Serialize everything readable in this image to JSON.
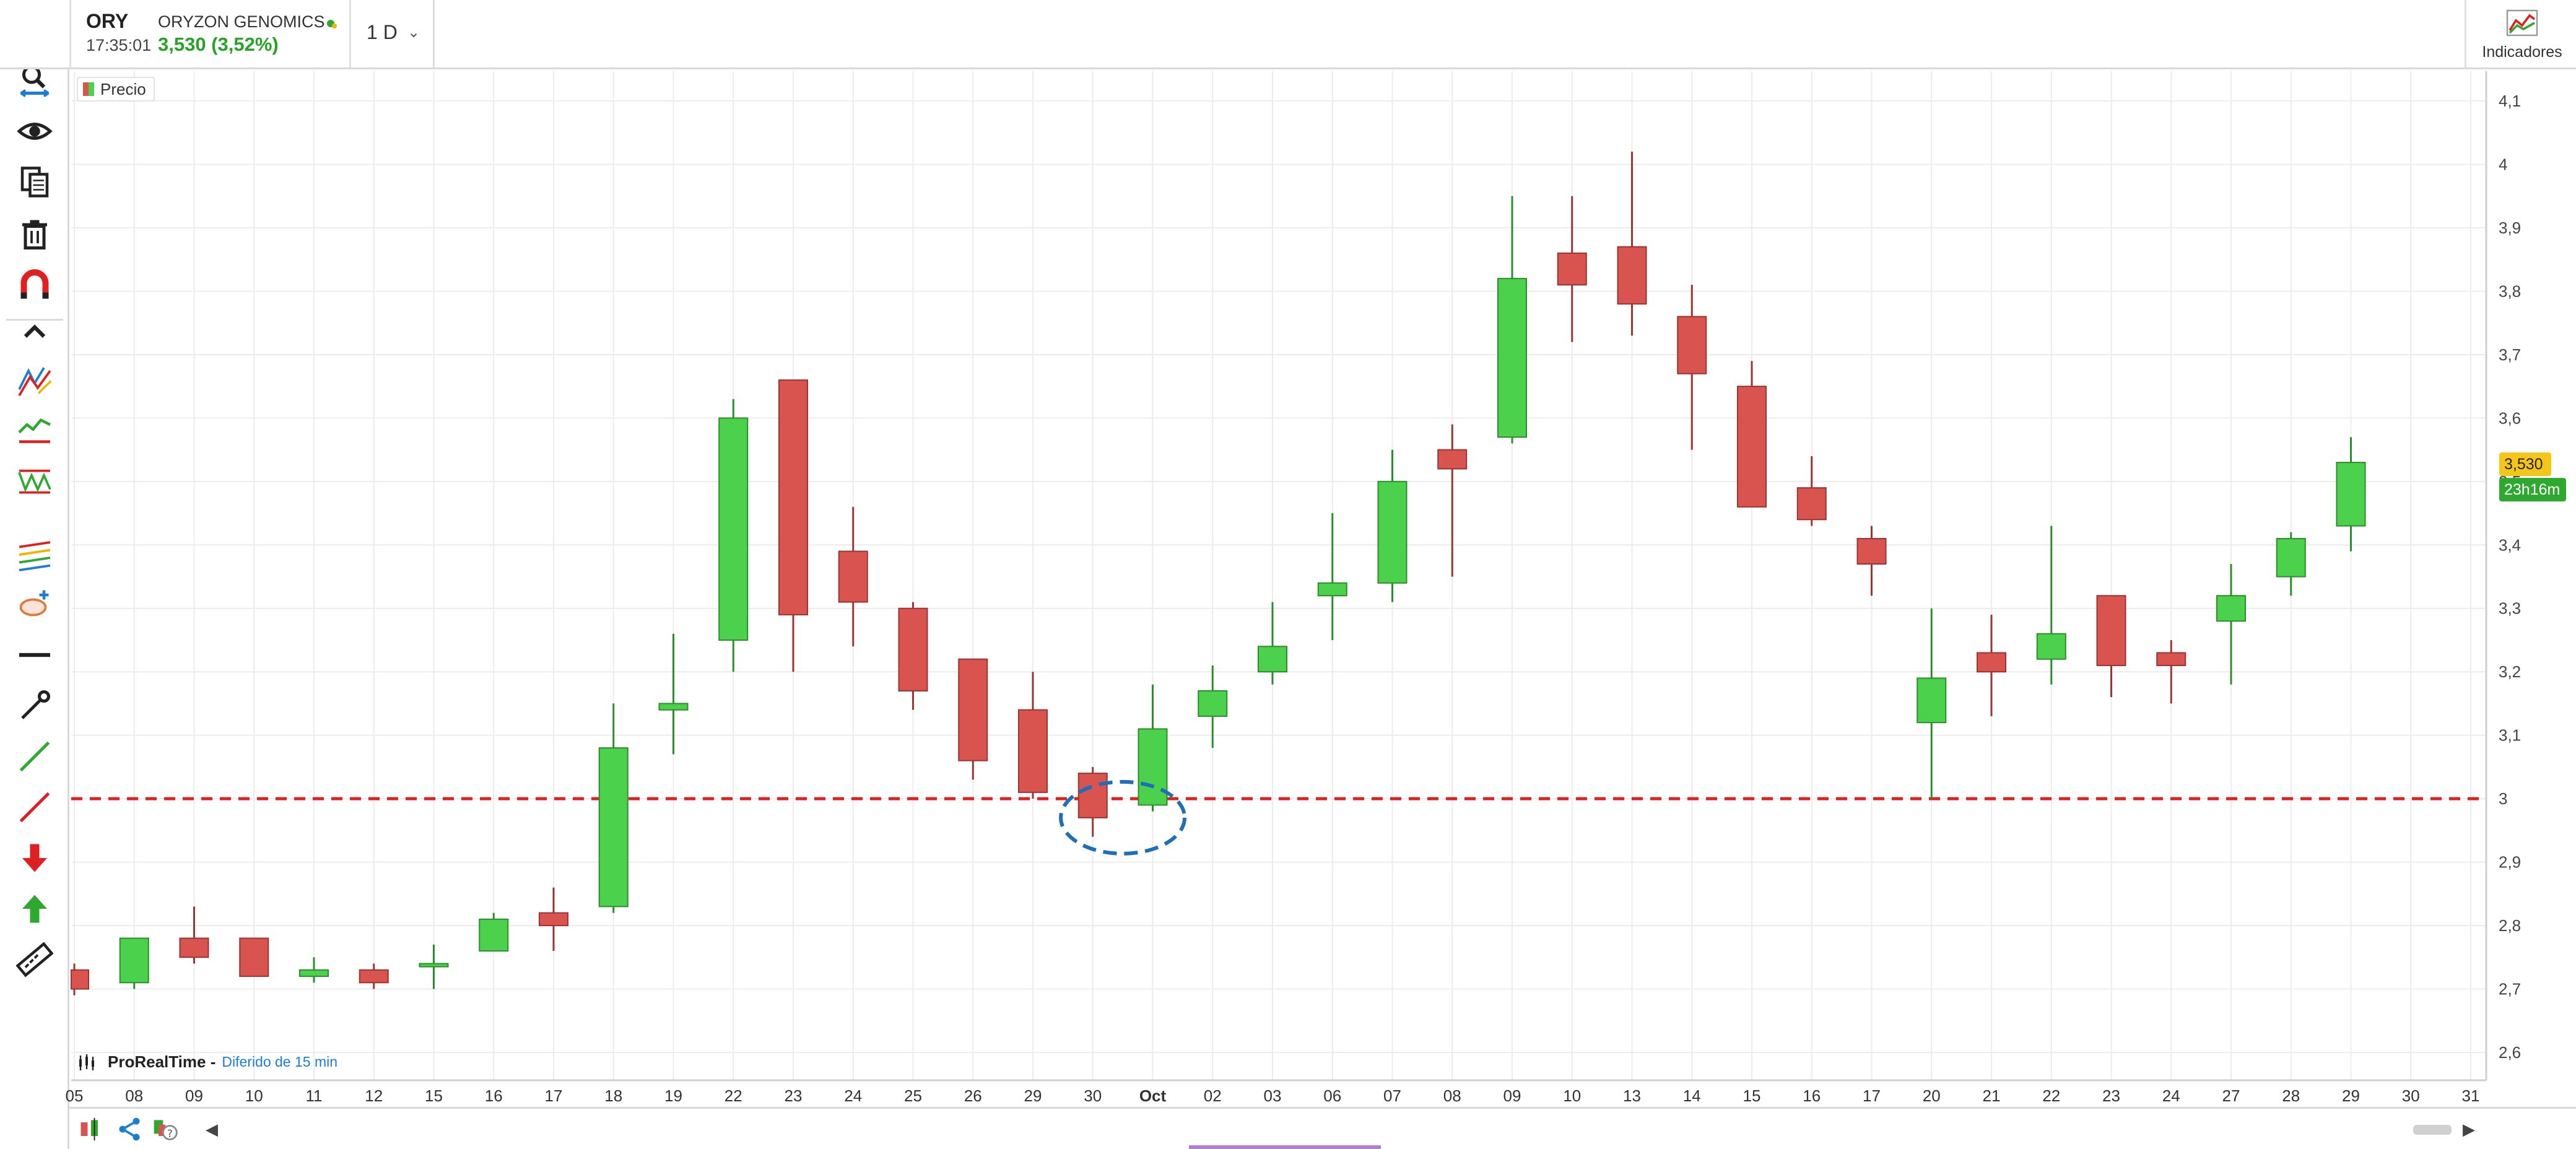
{
  "symbol": {
    "ticker": "ORY",
    "name": "ORYZON GENOMICS",
    "time": "17:35:01",
    "price_change": "3,530 (3,52%)"
  },
  "timeframe": {
    "label": "1 D"
  },
  "indicators": {
    "label": "Indicadores"
  },
  "legend": {
    "label": "Precio"
  },
  "brand": {
    "name": "ProRealTime -",
    "delay": "Diferido de 15 min"
  },
  "price_tags": {
    "last": "3,530",
    "countdown": "23h16m"
  },
  "colors": {
    "up": "#4cd14c",
    "down": "#d9534f",
    "support_line": "#e02020",
    "annotation": "#1f6fb8"
  },
  "toolbar_icons": [
    "pointer-icon",
    "zoom-icon",
    "eye-icon",
    "copy-icon",
    "trash-icon",
    "magnet-icon",
    "collapse-icon",
    "pencil-lines-icon",
    "trendlines-icon",
    "patterns-icon",
    "fibonacci-icon",
    "ellipse-icon",
    "horizontal-line-icon",
    "ray-icon",
    "green-line-icon",
    "red-line-icon",
    "sell-arrow-icon",
    "buy-arrow-icon",
    "ruler-icon"
  ],
  "chart_data": {
    "type": "candlestick",
    "y_ticks": [
      "4,1",
      "4",
      "3,9",
      "3,8",
      "3,7",
      "3,6",
      "3,5",
      "3,4",
      "3,3",
      "3,2",
      "3,1",
      "3",
      "2,9",
      "2,8",
      "2,7",
      "2,6"
    ],
    "ylim": [
      2.55,
      4.15
    ],
    "x_labels": [
      "05",
      "08",
      "09",
      "10",
      "11",
      "12",
      "15",
      "16",
      "17",
      "18",
      "19",
      "22",
      "23",
      "24",
      "25",
      "26",
      "29",
      "30",
      "Oct",
      "02",
      "03",
      "06",
      "07",
      "08",
      "09",
      "10",
      "13",
      "14",
      "15",
      "16",
      "17",
      "20",
      "21",
      "22",
      "23",
      "24",
      "27",
      "28",
      "29",
      "30",
      "31"
    ],
    "support_level": 3.0,
    "grid": true,
    "candles": [
      {
        "x": "05",
        "o": 2.73,
        "h": 2.74,
        "l": 2.69,
        "c": 2.7
      },
      {
        "x": "08",
        "o": 2.71,
        "h": 2.78,
        "l": 2.7,
        "c": 2.78
      },
      {
        "x": "09",
        "o": 2.78,
        "h": 2.83,
        "l": 2.74,
        "c": 2.75
      },
      {
        "x": "10",
        "o": 2.78,
        "h": 2.78,
        "l": 2.72,
        "c": 2.72
      },
      {
        "x": "11",
        "o": 2.72,
        "h": 2.75,
        "l": 2.71,
        "c": 2.73
      },
      {
        "x": "12",
        "o": 2.73,
        "h": 2.74,
        "l": 2.7,
        "c": 2.71
      },
      {
        "x": "15",
        "o": 2.74,
        "h": 2.77,
        "l": 2.7,
        "c": 2.74
      },
      {
        "x": "16",
        "o": 2.76,
        "h": 2.82,
        "l": 2.76,
        "c": 2.81
      },
      {
        "x": "17",
        "o": 2.82,
        "h": 2.86,
        "l": 2.76,
        "c": 2.8
      },
      {
        "x": "18",
        "o": 2.83,
        "h": 3.15,
        "l": 2.82,
        "c": 3.08
      },
      {
        "x": "19",
        "o": 3.14,
        "h": 3.26,
        "l": 3.07,
        "c": 3.15
      },
      {
        "x": "22",
        "o": 3.25,
        "h": 3.63,
        "l": 3.2,
        "c": 3.6
      },
      {
        "x": "23",
        "o": 3.66,
        "h": 3.66,
        "l": 3.2,
        "c": 3.29
      },
      {
        "x": "24",
        "o": 3.39,
        "h": 3.46,
        "l": 3.24,
        "c": 3.31
      },
      {
        "x": "25",
        "o": 3.3,
        "h": 3.31,
        "l": 3.14,
        "c": 3.17
      },
      {
        "x": "26",
        "o": 3.22,
        "h": 3.22,
        "l": 3.03,
        "c": 3.06
      },
      {
        "x": "29",
        "o": 3.14,
        "h": 3.2,
        "l": 3.0,
        "c": 3.01
      },
      {
        "x": "30",
        "o": 3.04,
        "h": 3.05,
        "l": 2.94,
        "c": 2.97
      },
      {
        "x": "Oct",
        "o": 2.99,
        "h": 3.18,
        "l": 2.98,
        "c": 3.11
      },
      {
        "x": "02",
        "o": 3.13,
        "h": 3.21,
        "l": 3.08,
        "c": 3.17
      },
      {
        "x": "03",
        "o": 3.2,
        "h": 3.31,
        "l": 3.18,
        "c": 3.24
      },
      {
        "x": "06",
        "o": 3.32,
        "h": 3.45,
        "l": 3.25,
        "c": 3.34
      },
      {
        "x": "07",
        "o": 3.34,
        "h": 3.55,
        "l": 3.31,
        "c": 3.5
      },
      {
        "x": "08",
        "o": 3.55,
        "h": 3.59,
        "l": 3.35,
        "c": 3.52
      },
      {
        "x": "09",
        "o": 3.57,
        "h": 3.95,
        "l": 3.56,
        "c": 3.82
      },
      {
        "x": "10",
        "o": 3.86,
        "h": 3.95,
        "l": 3.72,
        "c": 3.81
      },
      {
        "x": "13",
        "o": 3.87,
        "h": 4.02,
        "l": 3.73,
        "c": 3.78
      },
      {
        "x": "14",
        "o": 3.76,
        "h": 3.81,
        "l": 3.55,
        "c": 3.67
      },
      {
        "x": "15",
        "o": 3.65,
        "h": 3.69,
        "l": 3.46,
        "c": 3.46
      },
      {
        "x": "16",
        "o": 3.49,
        "h": 3.54,
        "l": 3.43,
        "c": 3.44
      },
      {
        "x": "17",
        "o": 3.41,
        "h": 3.43,
        "l": 3.32,
        "c": 3.37
      },
      {
        "x": "20",
        "o": 3.12,
        "h": 3.3,
        "l": 3.0,
        "c": 3.19
      },
      {
        "x": "21",
        "o": 3.23,
        "h": 3.29,
        "l": 3.13,
        "c": 3.2
      },
      {
        "x": "22",
        "o": 3.22,
        "h": 3.43,
        "l": 3.18,
        "c": 3.26
      },
      {
        "x": "23",
        "o": 3.32,
        "h": 3.32,
        "l": 3.16,
        "c": 3.21
      },
      {
        "x": "24",
        "o": 3.23,
        "h": 3.25,
        "l": 3.15,
        "c": 3.21
      },
      {
        "x": "27",
        "o": 3.28,
        "h": 3.37,
        "l": 3.18,
        "c": 3.32
      },
      {
        "x": "28",
        "o": 3.35,
        "h": 3.42,
        "l": 3.32,
        "c": 3.41
      },
      {
        "x": "29",
        "o": 3.43,
        "h": 3.57,
        "l": 3.39,
        "c": 3.53
      }
    ]
  }
}
